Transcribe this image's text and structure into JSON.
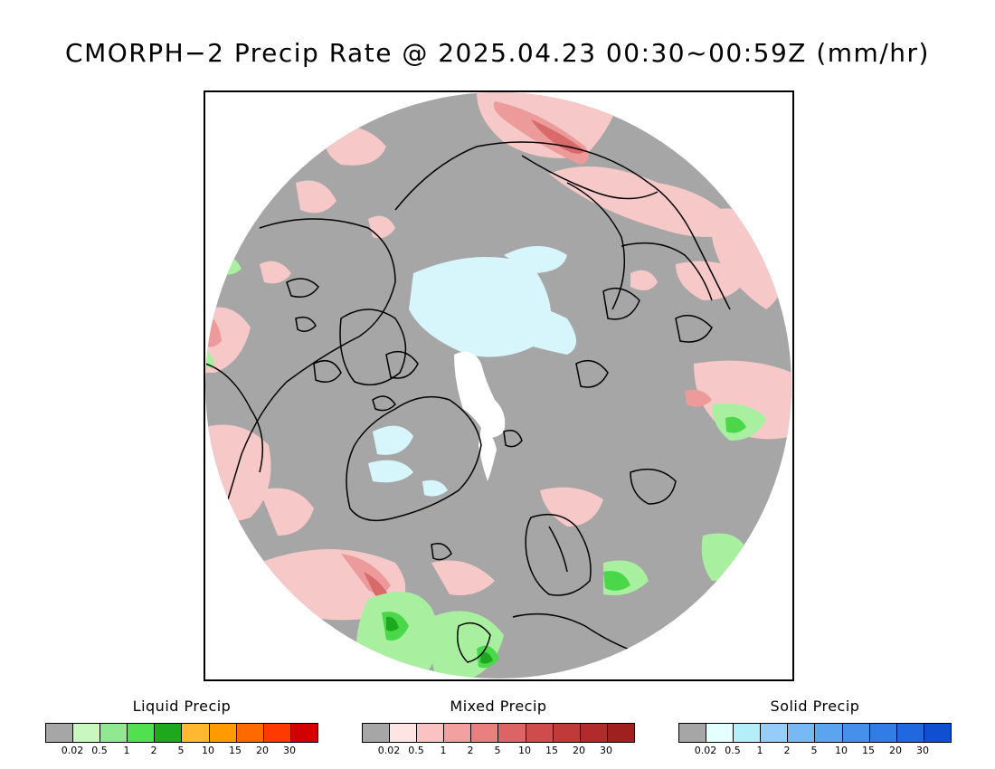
{
  "title": "CMORPH−2 Precip Rate @ 2025.04.23 00:30~00:59Z (mm/hr)",
  "map": {
    "projection": "north-polar-stereographic",
    "colors": {
      "no_precip": "#a6a6a6",
      "land_outline": "#000000",
      "light_mixed": "#f6c8c8",
      "mixed_moderate": "#ec9a9a",
      "mixed_heavy": "#d86a6a",
      "light_solid": "#d6f6fb",
      "heavy_solid": "#ffffff",
      "light_liquid": "#a8f0a0",
      "moderate_liquid": "#4ad84a",
      "heavy_liquid": "#1ea81e"
    }
  },
  "legends": [
    {
      "title": "Liquid Precip",
      "colors": [
        "#a6a6a6",
        "#c8f8c0",
        "#90e890",
        "#50e050",
        "#1ea81e",
        "#ffb830",
        "#ff9a00",
        "#ff6a00",
        "#ff3a00",
        "#d20000"
      ],
      "tick_labels": [
        "0.02",
        "0.5",
        "1",
        "2",
        "5",
        "10",
        "15",
        "20",
        "30"
      ]
    },
    {
      "title": "Mixed Precip",
      "colors": [
        "#a6a6a6",
        "#ffe4e4",
        "#fac2c2",
        "#f2a0a0",
        "#e88080",
        "#dc6464",
        "#d04c4c",
        "#c03a3a",
        "#b22a2a",
        "#a02020"
      ],
      "tick_labels": [
        "0.02",
        "0.5",
        "1",
        "2",
        "5",
        "10",
        "15",
        "20",
        "30"
      ]
    },
    {
      "title": "Solid Precip",
      "colors": [
        "#a6a6a6",
        "#e4ffff",
        "#b4eef8",
        "#96ccf8",
        "#78b8f4",
        "#5aa4f0",
        "#4690ec",
        "#327ce6",
        "#2068e0",
        "#1050d0"
      ],
      "tick_labels": [
        "0.02",
        "0.5",
        "1",
        "2",
        "5",
        "10",
        "15",
        "20",
        "30"
      ]
    }
  ]
}
